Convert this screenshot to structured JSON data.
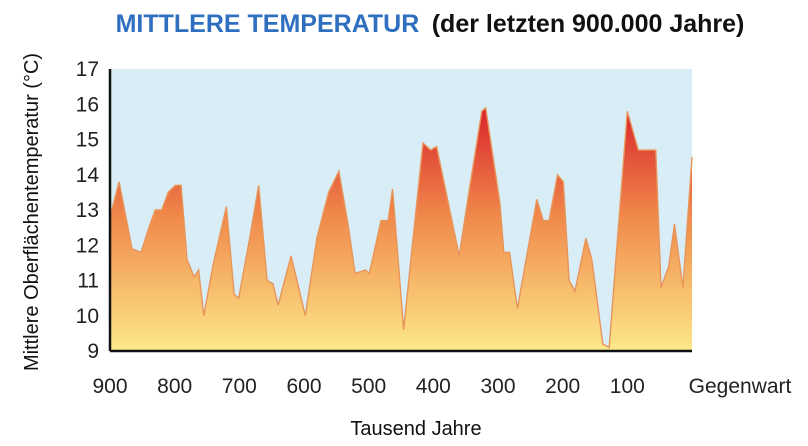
{
  "chart_data": {
    "type": "area",
    "title": "MITTLERE TEMPERATUR",
    "subtitle": "(der letzten 900.000 Jahre)",
    "xlabel": "Tausend Jahre",
    "ylabel": "Mittlere Oberflächentemperatur (°C)",
    "xlim": [
      900,
      0
    ],
    "ylim": [
      9,
      17
    ],
    "x_ticks": [
      {
        "value": 900,
        "label": "900"
      },
      {
        "value": 800,
        "label": "800"
      },
      {
        "value": 700,
        "label": "700"
      },
      {
        "value": 600,
        "label": "600"
      },
      {
        "value": 500,
        "label": "500"
      },
      {
        "value": 400,
        "label": "400"
      },
      {
        "value": 300,
        "label": "300"
      },
      {
        "value": 200,
        "label": "200"
      },
      {
        "value": 100,
        "label": "100"
      },
      {
        "value": 0,
        "label": "Gegenwart"
      }
    ],
    "y_ticks": [
      9,
      10,
      11,
      12,
      13,
      14,
      15,
      16,
      17
    ],
    "grid": false,
    "colors": {
      "background": "#d9edf7",
      "fill_top": "#d9232b",
      "fill_mid": "#f08a4b",
      "fill_bottom": "#fde98a",
      "line": "#e8955a",
      "title_blue": "#2f6fbf"
    },
    "series": [
      {
        "x": [
          900,
          886,
          866,
          852,
          838,
          830,
          820,
          810,
          799,
          790,
          781,
          770,
          763,
          755,
          740,
          720,
          708,
          701,
          684,
          670,
          657,
          648,
          640,
          620,
          598,
          580,
          562,
          546,
          532,
          521,
          505,
          499,
          488,
          481,
          470,
          463,
          446,
          416,
          404,
          395,
          360,
          345,
          325,
          319,
          297,
          291,
          282,
          270,
          240,
          230,
          221,
          208,
          199,
          190,
          181,
          164,
          155,
          138,
          128,
          100,
          83,
          75,
          56,
          48,
          36,
          27,
          14,
          0
        ],
        "values": [
          12.8,
          13.8,
          11.9,
          11.8,
          12.6,
          13.0,
          13.0,
          13.5,
          13.7,
          13.7,
          11.6,
          11.1,
          11.3,
          10.0,
          11.5,
          13.1,
          10.6,
          10.5,
          12.2,
          13.7,
          11.0,
          10.9,
          10.3,
          11.7,
          10.0,
          12.2,
          13.5,
          14.1,
          12.6,
          11.2,
          11.3,
          11.2,
          12.1,
          12.7,
          12.7,
          13.6,
          9.6,
          14.9,
          14.7,
          14.8,
          11.7,
          13.5,
          15.8,
          15.9,
          13.2,
          11.8,
          11.8,
          10.2,
          13.3,
          12.7,
          12.7,
          14.0,
          13.8,
          11.0,
          10.7,
          12.2,
          11.6,
          9.2,
          9.1,
          15.8,
          14.7,
          14.7,
          14.7,
          10.8,
          11.4,
          12.6,
          10.8,
          14.5
        ]
      }
    ]
  }
}
